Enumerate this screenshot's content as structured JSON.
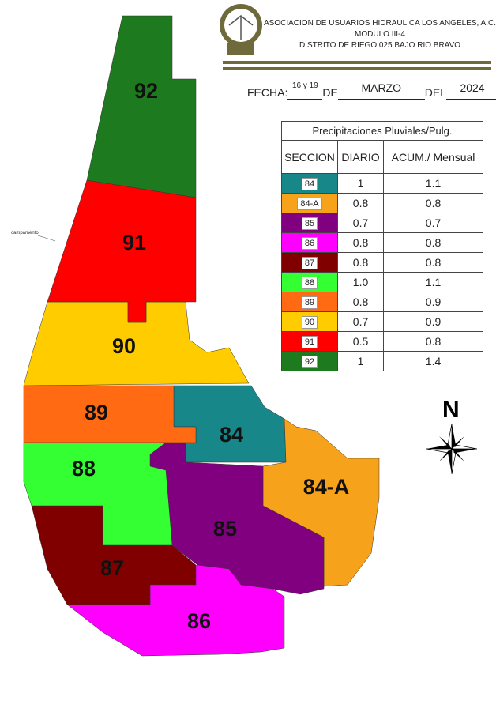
{
  "header": {
    "line1": "ASOCIACION DE USUARIOS HIDRAULICA LOS ANGELES, A.C.",
    "line2": "MODULO III-4",
    "line3": "DISTRITO DE RIEGO 025 BAJO RIO BRAVO",
    "logo_text": "MODULO III-4"
  },
  "fecha": {
    "label_fecha": "FECHA:",
    "dias": "16 y 19",
    "label_de": "DE",
    "mes": "MARZO",
    "label_del": "DEL",
    "anio": "2024"
  },
  "table": {
    "title": "Precipitaciones Pluviales/Pulg.",
    "headers": [
      "SECCION",
      "DIARIO",
      "ACUM./ Mensual"
    ],
    "rows": [
      {
        "seccion": "84",
        "diario": "1",
        "acum": "1.1",
        "color": "#17878a"
      },
      {
        "seccion": "84-A",
        "diario": "0.8",
        "acum": "0.8",
        "color": "#f7a21b"
      },
      {
        "seccion": "85",
        "diario": "0.7",
        "acum": "0.7",
        "color": "#800080"
      },
      {
        "seccion": "86",
        "diario": "0.8",
        "acum": "0.8",
        "color": "#ff00ff"
      },
      {
        "seccion": "87",
        "diario": "0.8",
        "acum": "0.8",
        "color": "#800000"
      },
      {
        "seccion": "88",
        "diario": "1.0",
        "acum": "1.1",
        "color": "#33ff33"
      },
      {
        "seccion": "89",
        "diario": "0.8",
        "acum": "0.9",
        "color": "#ff6a13"
      },
      {
        "seccion": "90",
        "diario": "0.7",
        "acum": "0.9",
        "color": "#ffcc00"
      },
      {
        "seccion": "91",
        "diario": "0.5",
        "acum": "0.8",
        "color": "#ff0000"
      },
      {
        "seccion": "92",
        "diario": "1",
        "acum": "1.4",
        "color": "#1e7a1e"
      }
    ]
  },
  "map": {
    "north_label": "N",
    "place_label": "campamento"
  }
}
